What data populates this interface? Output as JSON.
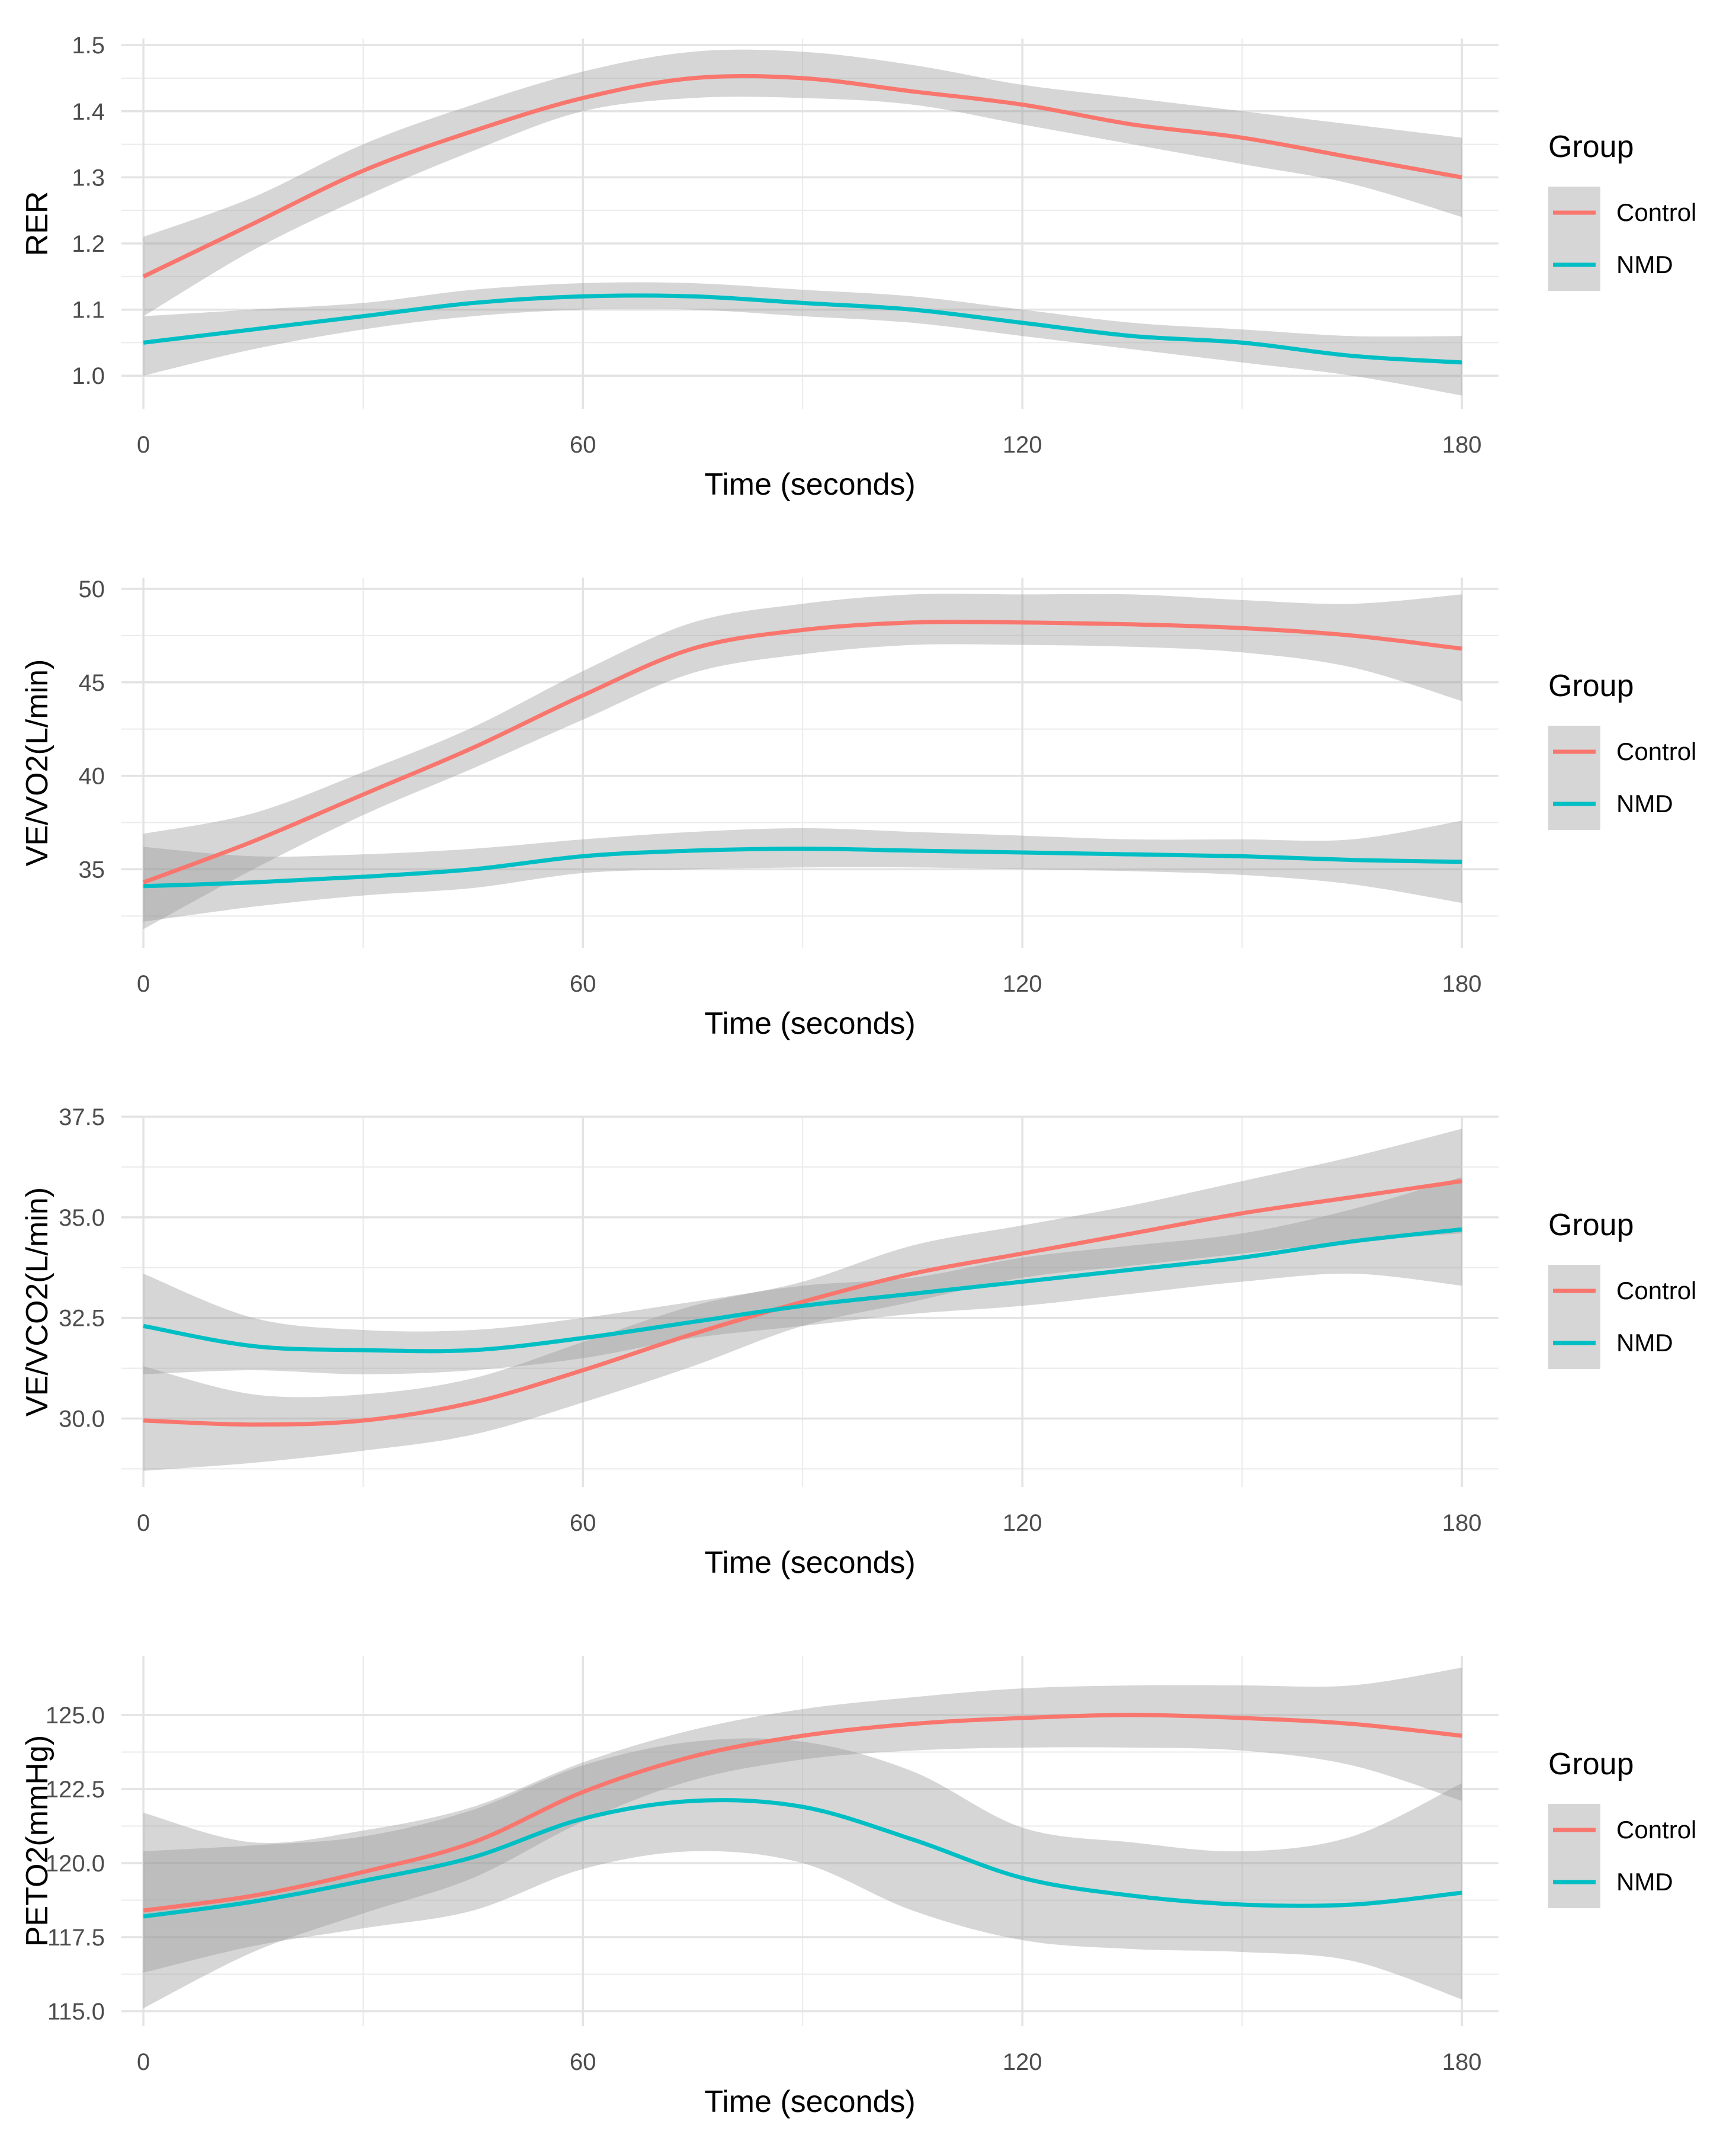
{
  "chart_data": [
    {
      "type": "line",
      "title": "",
      "xlabel": "Time (seconds)",
      "ylabel": "RER",
      "xlim": [
        -3,
        185
      ],
      "ylim": [
        0.95,
        1.51
      ],
      "xticks": [
        0,
        60,
        120,
        180
      ],
      "xtick_labels": [
        "0",
        "60",
        "120",
        "180"
      ],
      "yticks": [
        1.0,
        1.1,
        1.2,
        1.3,
        1.4,
        1.5
      ],
      "ytick_labels": [
        "1.0",
        "1.1",
        "1.2",
        "1.3",
        "1.4",
        "1.5"
      ],
      "x": [
        0,
        15,
        30,
        45,
        60,
        75,
        90,
        105,
        120,
        135,
        150,
        165,
        180
      ],
      "legend": {
        "title": "Group",
        "position": "right"
      },
      "series": [
        {
          "name": "Control",
          "color": "#F8766D",
          "values": [
            1.15,
            1.23,
            1.31,
            1.37,
            1.42,
            1.45,
            1.45,
            1.43,
            1.41,
            1.38,
            1.36,
            1.33,
            1.3
          ],
          "lower": [
            1.09,
            1.19,
            1.27,
            1.34,
            1.4,
            1.42,
            1.42,
            1.41,
            1.38,
            1.35,
            1.32,
            1.29,
            1.24
          ],
          "upper": [
            1.21,
            1.27,
            1.35,
            1.41,
            1.46,
            1.49,
            1.49,
            1.47,
            1.44,
            1.42,
            1.4,
            1.38,
            1.36
          ]
        },
        {
          "name": "NMD",
          "color": "#00BFC4",
          "values": [
            1.05,
            1.07,
            1.09,
            1.11,
            1.12,
            1.12,
            1.11,
            1.1,
            1.08,
            1.06,
            1.05,
            1.03,
            1.02
          ],
          "lower": [
            1.0,
            1.04,
            1.07,
            1.09,
            1.1,
            1.1,
            1.09,
            1.08,
            1.06,
            1.04,
            1.02,
            1.0,
            0.97
          ],
          "upper": [
            1.09,
            1.1,
            1.11,
            1.13,
            1.14,
            1.14,
            1.13,
            1.12,
            1.1,
            1.08,
            1.07,
            1.06,
            1.06
          ]
        }
      ]
    },
    {
      "type": "line",
      "title": "",
      "xlabel": "Time (seconds)",
      "ylabel": "VE/VO2(L/min)",
      "xlim": [
        -3,
        185
      ],
      "ylim": [
        30.8,
        50.6
      ],
      "xticks": [
        0,
        60,
        120,
        180
      ],
      "xtick_labels": [
        "0",
        "60",
        "120",
        "180"
      ],
      "yticks": [
        35,
        40,
        45,
        50
      ],
      "ytick_labels": [
        "35",
        "40",
        "45",
        "50"
      ],
      "x": [
        0,
        15,
        30,
        45,
        60,
        75,
        90,
        105,
        120,
        135,
        150,
        165,
        180
      ],
      "legend": {
        "title": "Group",
        "position": "right"
      },
      "series": [
        {
          "name": "Control",
          "color": "#F8766D",
          "values": [
            34.3,
            36.5,
            39.0,
            41.5,
            44.3,
            46.8,
            47.8,
            48.2,
            48.2,
            48.1,
            47.9,
            47.5,
            46.8
          ],
          "lower": [
            31.8,
            35.0,
            37.9,
            40.4,
            43.0,
            45.5,
            46.5,
            47.0,
            47.0,
            46.9,
            46.6,
            45.8,
            44.0
          ],
          "upper": [
            36.9,
            38.0,
            40.2,
            42.6,
            45.6,
            48.2,
            49.2,
            49.7,
            49.7,
            49.7,
            49.4,
            49.2,
            49.7
          ]
        },
        {
          "name": "NMD",
          "color": "#00BFC4",
          "values": [
            34.1,
            34.3,
            34.6,
            35.0,
            35.7,
            36.0,
            36.1,
            36.0,
            35.9,
            35.8,
            35.7,
            35.5,
            35.4
          ],
          "lower": [
            32.2,
            33.0,
            33.6,
            34.0,
            34.8,
            35.0,
            35.1,
            35.1,
            35.0,
            34.9,
            34.7,
            34.2,
            33.2
          ],
          "upper": [
            36.2,
            35.7,
            35.8,
            36.1,
            36.6,
            37.0,
            37.2,
            37.0,
            36.8,
            36.6,
            36.6,
            36.6,
            37.6
          ]
        }
      ]
    },
    {
      "type": "line",
      "title": "",
      "xlabel": "Time (seconds)",
      "ylabel": "VE/VCO2(L/min)",
      "xlim": [
        -3,
        185
      ],
      "ylim": [
        28.3,
        37.5
      ],
      "xticks": [
        0,
        60,
        120,
        180
      ],
      "xtick_labels": [
        "0",
        "60",
        "120",
        "180"
      ],
      "yticks": [
        30.0,
        32.5,
        35.0,
        37.5
      ],
      "ytick_labels": [
        "30.0",
        "32.5",
        "35.0",
        "37.5"
      ],
      "x": [
        0,
        15,
        30,
        45,
        60,
        75,
        90,
        105,
        120,
        135,
        150,
        165,
        180
      ],
      "legend": {
        "title": "Group",
        "position": "right"
      },
      "series": [
        {
          "name": "Control",
          "color": "#F8766D",
          "values": [
            29.95,
            29.85,
            29.95,
            30.4,
            31.2,
            32.1,
            32.9,
            33.6,
            34.1,
            34.6,
            35.1,
            35.5,
            35.9
          ],
          "lower": [
            28.7,
            28.9,
            29.2,
            29.6,
            30.4,
            31.3,
            32.3,
            32.9,
            33.5,
            33.8,
            34.1,
            34.4,
            34.6
          ],
          "upper": [
            31.3,
            30.6,
            30.6,
            31.0,
            31.9,
            32.8,
            33.4,
            34.3,
            34.8,
            35.3,
            35.9,
            36.5,
            37.2
          ]
        },
        {
          "name": "NMD",
          "color": "#00BFC4",
          "values": [
            32.3,
            31.8,
            31.7,
            31.7,
            32.0,
            32.4,
            32.8,
            33.1,
            33.4,
            33.7,
            34.0,
            34.4,
            34.7
          ],
          "lower": [
            31.1,
            31.2,
            31.1,
            31.2,
            31.5,
            32.0,
            32.3,
            32.6,
            32.8,
            33.1,
            33.4,
            33.6,
            33.3
          ],
          "upper": [
            33.6,
            32.5,
            32.2,
            32.2,
            32.5,
            32.9,
            33.3,
            33.5,
            34.0,
            34.3,
            34.6,
            35.2,
            36.0
          ]
        }
      ]
    },
    {
      "type": "line",
      "title": "",
      "xlabel": "Time (seconds)",
      "ylabel": "PETO2(mmHg)",
      "xlim": [
        -3,
        185
      ],
      "ylim": [
        114.5,
        127.0
      ],
      "xticks": [
        0,
        60,
        120,
        180
      ],
      "xtick_labels": [
        "0",
        "60",
        "120",
        "180"
      ],
      "yticks": [
        115.0,
        117.5,
        120.0,
        122.5,
        125.0
      ],
      "ytick_labels": [
        "115.0",
        "117.5",
        "120.0",
        "122.5",
        "125.0"
      ],
      "x": [
        0,
        15,
        30,
        45,
        60,
        75,
        90,
        105,
        120,
        135,
        150,
        165,
        180
      ],
      "legend": {
        "title": "Group",
        "position": "right"
      },
      "series": [
        {
          "name": "Control",
          "color": "#F8766D",
          "values": [
            118.4,
            118.9,
            119.7,
            120.7,
            122.4,
            123.6,
            124.3,
            124.7,
            124.9,
            125.0,
            124.9,
            124.7,
            124.3
          ],
          "lower": [
            115.1,
            117.0,
            118.3,
            119.5,
            121.4,
            122.8,
            123.5,
            123.8,
            123.9,
            123.9,
            123.8,
            123.3,
            122.1
          ],
          "upper": [
            121.7,
            120.7,
            121.1,
            121.9,
            123.4,
            124.5,
            125.2,
            125.6,
            125.9,
            126.0,
            126.0,
            126.0,
            126.6
          ]
        },
        {
          "name": "NMD",
          "color": "#00BFC4",
          "values": [
            118.2,
            118.7,
            119.4,
            120.2,
            121.5,
            122.1,
            121.9,
            120.8,
            119.5,
            118.9,
            118.6,
            118.6,
            119.0
          ],
          "lower": [
            116.3,
            117.2,
            117.8,
            118.4,
            119.8,
            120.4,
            120.0,
            118.4,
            117.4,
            117.1,
            117.0,
            116.7,
            115.4
          ],
          "upper": [
            120.4,
            120.6,
            120.9,
            121.8,
            123.3,
            124.1,
            124.1,
            123.1,
            121.2,
            120.7,
            120.4,
            120.9,
            122.7
          ]
        }
      ]
    }
  ]
}
